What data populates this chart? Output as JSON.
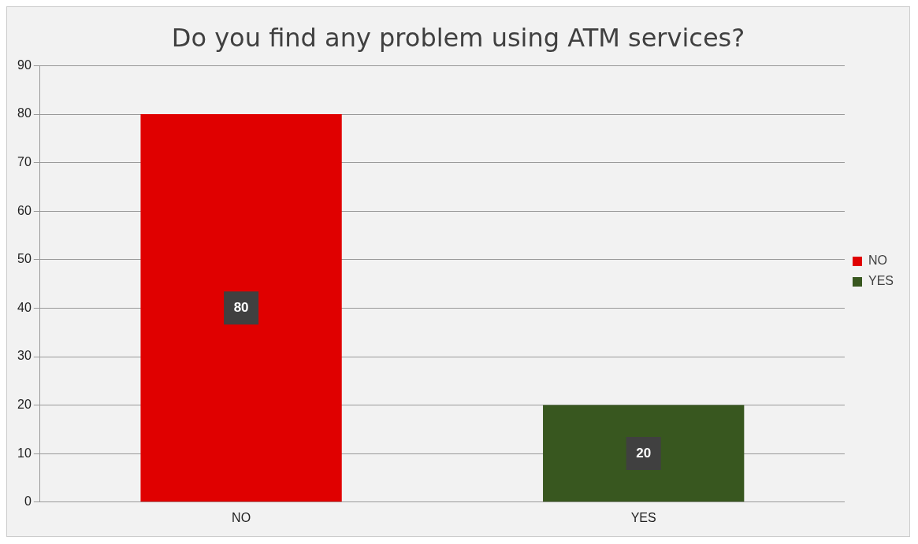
{
  "chart_data": {
    "type": "bar",
    "title": "Do you find any problem using ATM services?",
    "categories": [
      "NO",
      "YES"
    ],
    "series": [
      {
        "name": "NO",
        "color": "#e00000",
        "values": [
          80,
          null
        ]
      },
      {
        "name": "YES",
        "color": "#38571f",
        "values": [
          null,
          20
        ]
      }
    ],
    "ylim": [
      0,
      90
    ],
    "yticks": [
      0,
      10,
      20,
      30,
      40,
      50,
      60,
      70,
      80,
      90
    ],
    "grid": "y",
    "legend": "right",
    "data_labels": true
  }
}
